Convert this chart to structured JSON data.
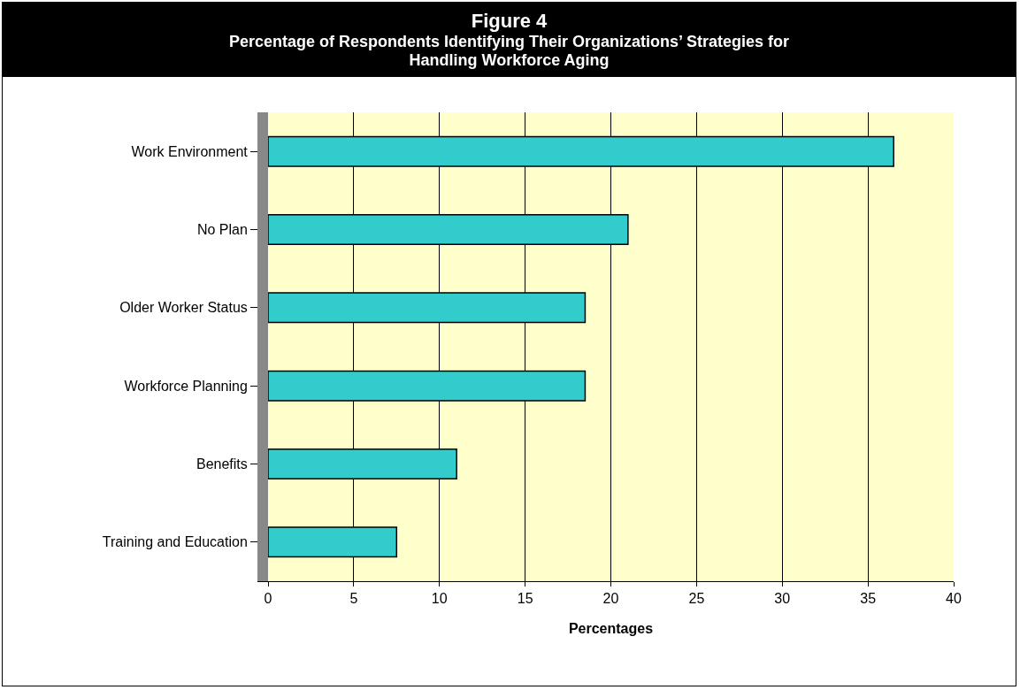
{
  "chart_data": {
    "type": "bar",
    "orientation": "horizontal",
    "title": "Figure 4",
    "subtitle": "Percentage of Respondents Identifying Their Organizations’ Strategies for Handling Workforce Aging",
    "xlabel": "Percentages",
    "categories": [
      "Work Environment",
      "No Plan",
      "Older Worker Status",
      "Workforce Planning",
      "Benefits",
      "Training and Education"
    ],
    "values": [
      36.5,
      21,
      18.5,
      18.5,
      11,
      7.5
    ],
    "color": "#33cccc",
    "xlim": [
      0,
      40
    ],
    "xticks": [
      0,
      5,
      10,
      15,
      20,
      25,
      30,
      35,
      40
    ],
    "grid": "x"
  }
}
